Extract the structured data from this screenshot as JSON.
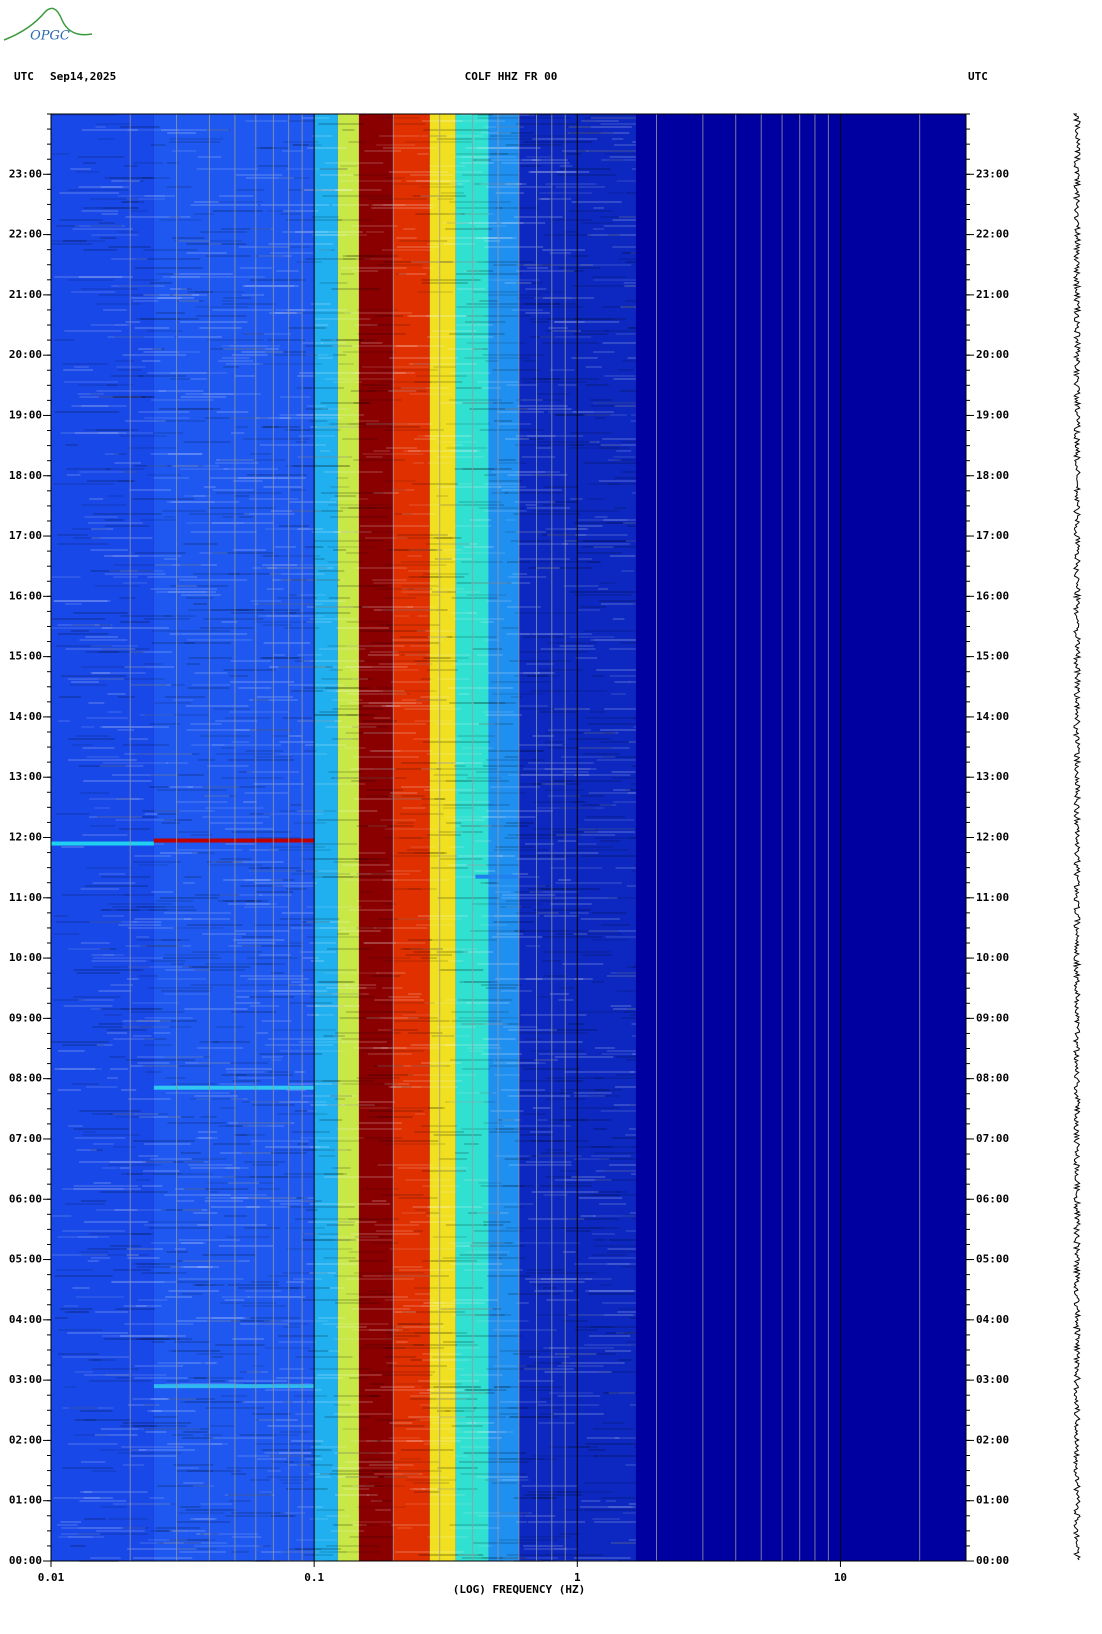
{
  "logo": "OPGC",
  "chart_data": {
    "type": "spectrogram",
    "title": "COLF HHZ FR 00",
    "left_label": "UTC",
    "date": "Sep14,2025",
    "right_label": "UTC",
    "xlabel": "(LOG) FREQUENCY (HZ)",
    "xscale": "log",
    "xlim": [
      0.01,
      30
    ],
    "xticks": [
      0.01,
      0.1,
      1,
      10
    ],
    "ylim": [
      0,
      24
    ],
    "yticks": [
      {
        "value": 0,
        "label": "00:00"
      },
      {
        "value": 1,
        "label": "01:00"
      },
      {
        "value": 2,
        "label": "02:00"
      },
      {
        "value": 3,
        "label": "03:00"
      },
      {
        "value": 4,
        "label": "04:00"
      },
      {
        "value": 5,
        "label": "05:00"
      },
      {
        "value": 6,
        "label": "06:00"
      },
      {
        "value": 7,
        "label": "07:00"
      },
      {
        "value": 8,
        "label": "08:00"
      },
      {
        "value": 9,
        "label": "09:00"
      },
      {
        "value": 10,
        "label": "10:00"
      },
      {
        "value": 11,
        "label": "11:00"
      },
      {
        "value": 12,
        "label": "12:00"
      },
      {
        "value": 13,
        "label": "13:00"
      },
      {
        "value": 14,
        "label": "14:00"
      },
      {
        "value": 15,
        "label": "15:00"
      },
      {
        "value": 16,
        "label": "16:00"
      },
      {
        "value": 17,
        "label": "17:00"
      },
      {
        "value": 18,
        "label": "18:00"
      },
      {
        "value": 19,
        "label": "19:00"
      },
      {
        "value": 20,
        "label": "20:00"
      },
      {
        "value": 21,
        "label": "21:00"
      },
      {
        "value": 22,
        "label": "22:00"
      },
      {
        "value": 23,
        "label": "23:00"
      }
    ],
    "grid": true,
    "background": "#0000a0",
    "bands": [
      {
        "from": 0.01,
        "to": 0.0246,
        "color": "#1848e8"
      },
      {
        "from": 0.0246,
        "to": 0.1,
        "color": "#1e58f0"
      },
      {
        "from": 0.1,
        "to": 0.123,
        "color": "#20b0f0"
      },
      {
        "from": 0.123,
        "to": 0.148,
        "color": "#c8e848"
      },
      {
        "from": 0.148,
        "to": 0.199,
        "color": "#8a0000"
      },
      {
        "from": 0.199,
        "to": 0.275,
        "color": "#e03000"
      },
      {
        "from": 0.275,
        "to": 0.345,
        "color": "#f0e020"
      },
      {
        "from": 0.345,
        "to": 0.46,
        "color": "#30e0d0"
      },
      {
        "from": 0.46,
        "to": 0.6,
        "color": "#2090f0"
      },
      {
        "from": 0.6,
        "to": 1.67,
        "color": "#0c28c0"
      }
    ],
    "events": [
      {
        "time": 11.9,
        "from": 0.01,
        "to": 0.0246,
        "color": "#20d0f0"
      },
      {
        "time": 11.95,
        "from": 0.0246,
        "to": 0.1,
        "color": "#c00000"
      },
      {
        "time": 7.85,
        "from": 0.0246,
        "to": 0.1,
        "color": "#30c8f0"
      },
      {
        "time": 2.9,
        "from": 0.0246,
        "to": 0.1,
        "color": "#30b8f0"
      },
      {
        "time": 11.35,
        "from": 0.41,
        "to": 0.6,
        "color": "#2080f0"
      }
    ]
  }
}
